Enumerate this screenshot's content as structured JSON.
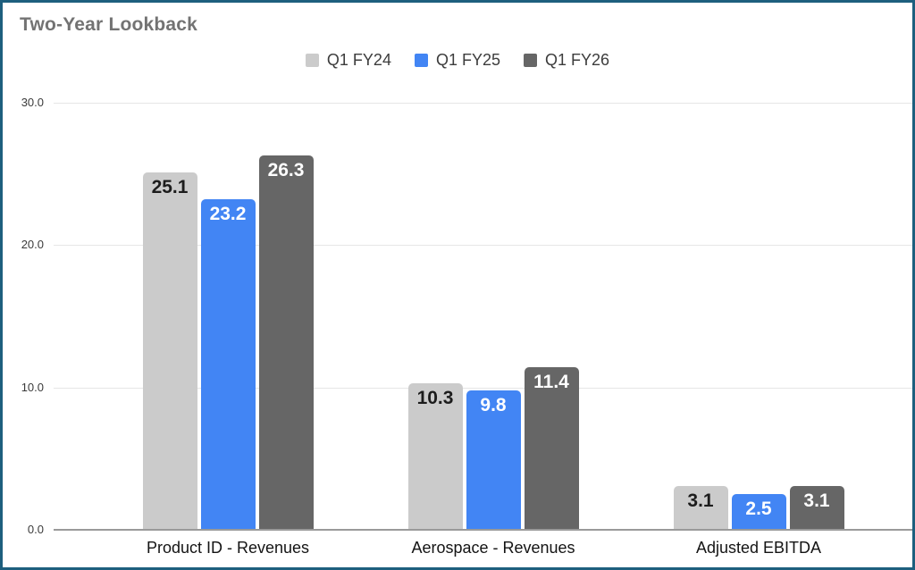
{
  "chart_data": {
    "type": "bar",
    "title": "Two-Year Lookback",
    "categories": [
      "Product ID - Revenues",
      "Aerospace - Revenues",
      "Adjusted EBITDA"
    ],
    "series": [
      {
        "name": "Q1 FY24",
        "color": "#cbcbcb",
        "label_color": "#1c1c1c",
        "values": [
          25.1,
          10.3,
          3.1
        ]
      },
      {
        "name": "Q1 FY25",
        "color": "#4285f4",
        "label_color": "#ffffff",
        "values": [
          23.2,
          9.8,
          2.5
        ]
      },
      {
        "name": "Q1 FY26",
        "color": "#666666",
        "label_color": "#ffffff",
        "values": [
          26.3,
          11.4,
          3.1
        ]
      }
    ],
    "ylim": [
      0,
      30
    ],
    "yticks": [
      {
        "value": 0,
        "label": "0.0"
      },
      {
        "value": 10,
        "label": "10.0"
      },
      {
        "value": 20,
        "label": "20.0"
      },
      {
        "value": 30,
        "label": "30.0"
      }
    ],
    "grid": true,
    "legend_position": "top",
    "value_labels": "inside-top",
    "title_color": "#737373",
    "border_color": "#1e5f7e"
  }
}
